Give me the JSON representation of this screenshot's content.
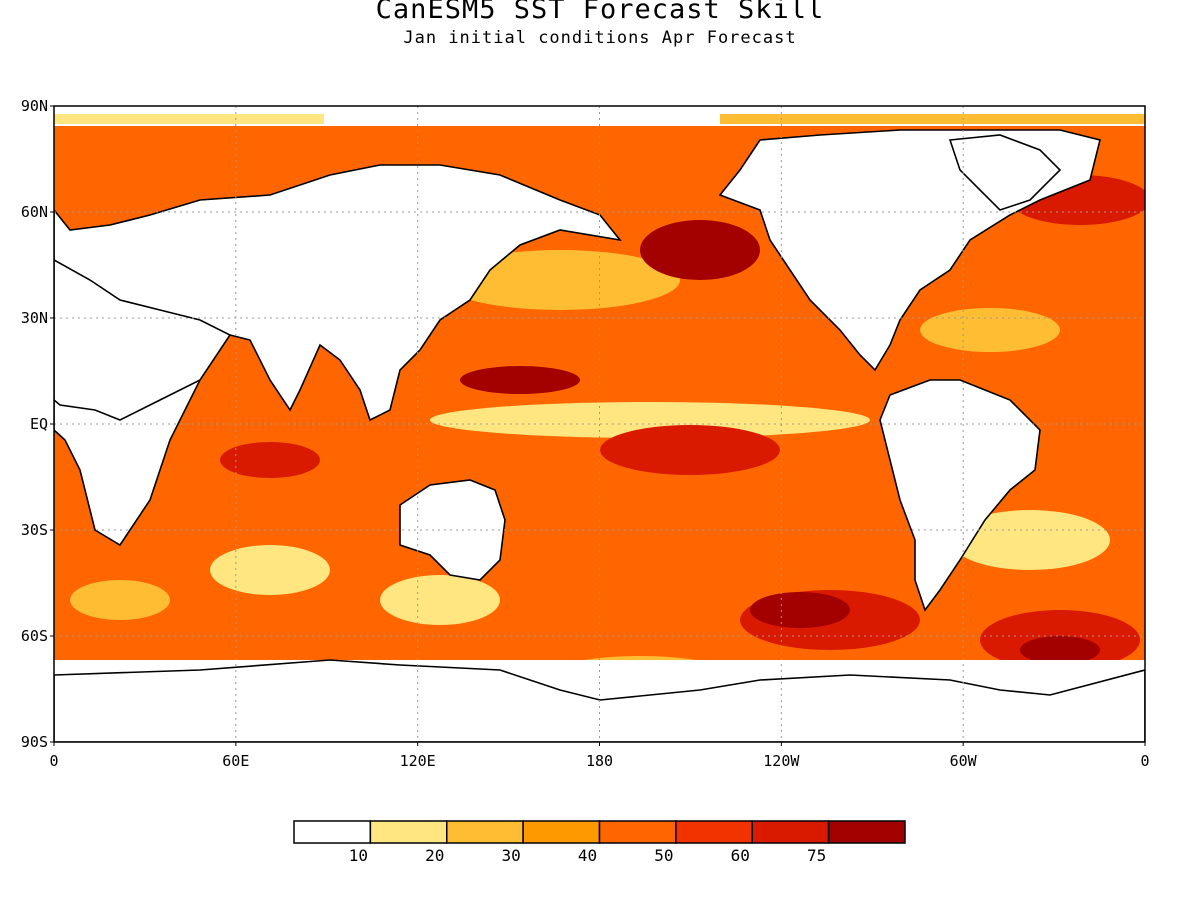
{
  "title": "CanESM5 SST Forecast Skill",
  "subtitle": "Jan initial conditions  Apr Forecast",
  "map": {
    "projection": "equirectangular",
    "lon_range": [
      0,
      360
    ],
    "lat_range": [
      -90,
      90
    ],
    "gridlines": "dotted",
    "y_ticks": [
      "90N",
      "60N",
      "30N",
      "EQ",
      "30S",
      "60S",
      "90S"
    ],
    "x_ticks": [
      "0",
      "60E",
      "120E",
      "180",
      "120W",
      "60W",
      "0"
    ]
  },
  "colorbar": {
    "levels": [
      "10",
      "20",
      "30",
      "40",
      "50",
      "60",
      "75"
    ],
    "colors": [
      "#ffffff",
      "#ffe680",
      "#ffbd33",
      "#ff9900",
      "#ff6600",
      "#f23300",
      "#d91a00",
      "#a30000"
    ]
  }
}
